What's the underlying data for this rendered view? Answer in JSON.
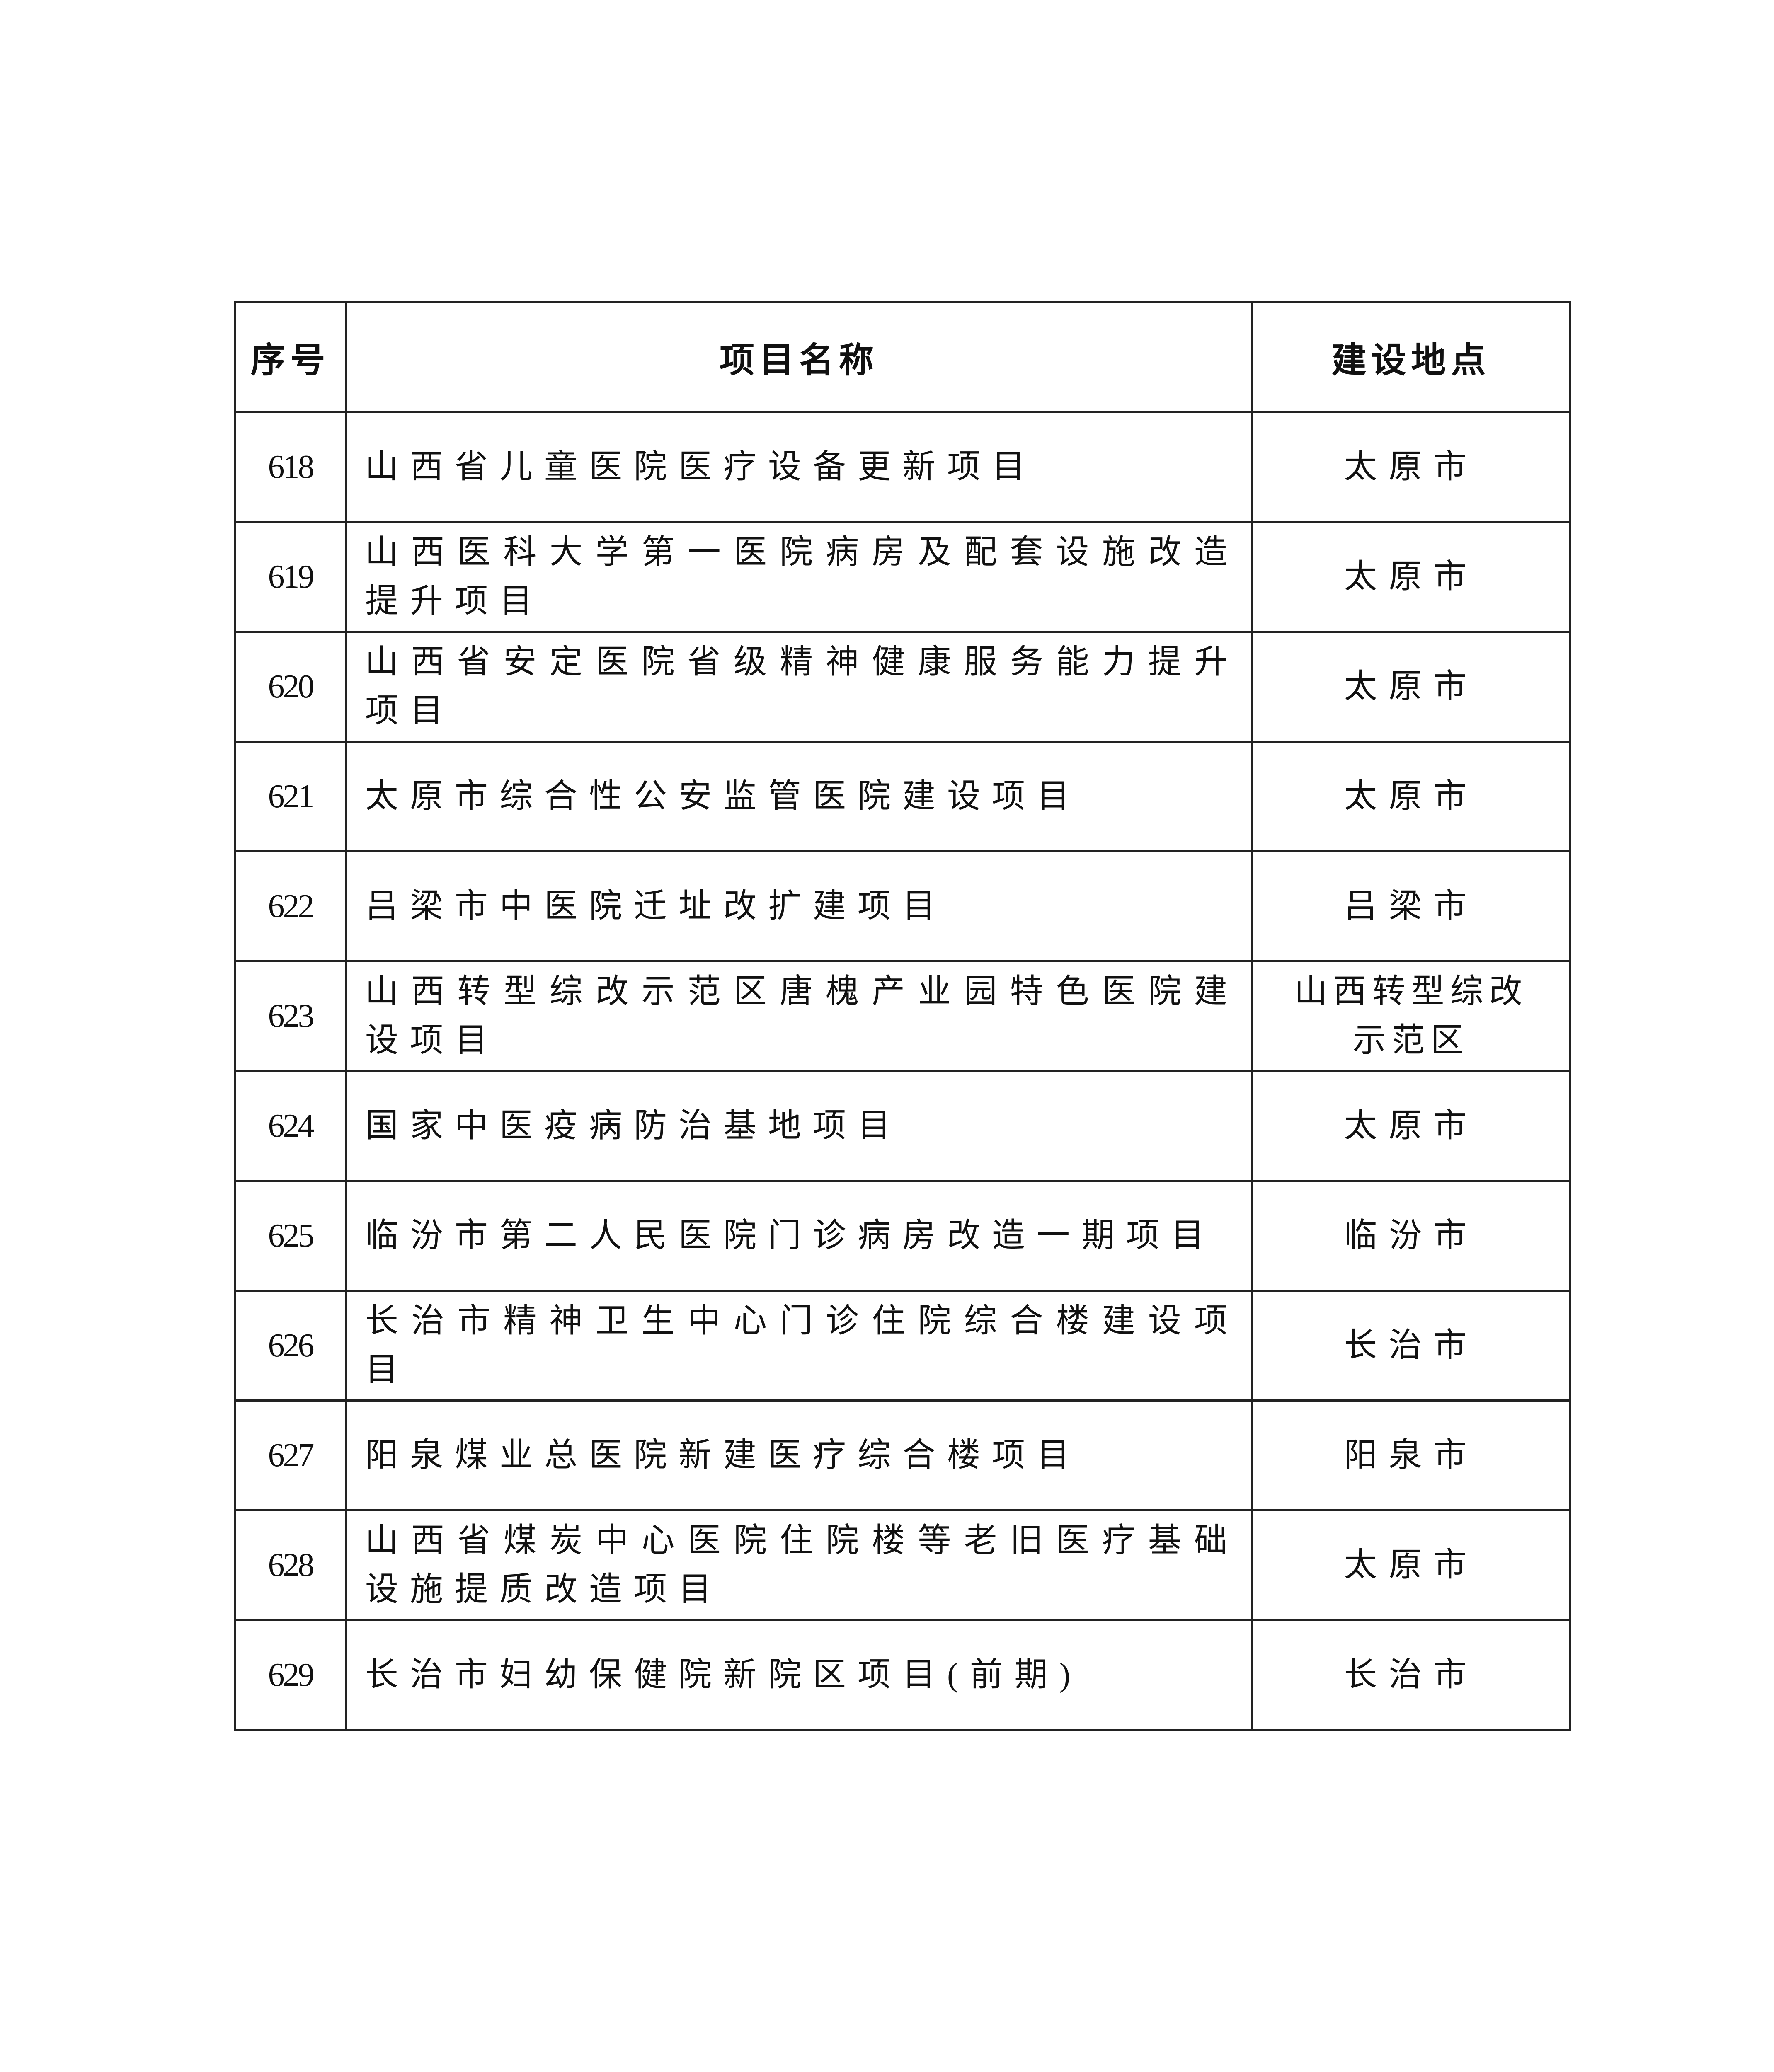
{
  "table": {
    "headers": [
      "序号",
      "项目名称",
      "建设地点"
    ],
    "rows": [
      {
        "no": "618",
        "name": "山西省儿童医院医疗设备更新项目",
        "location": "太原市"
      },
      {
        "no": "619",
        "name": "山西医科大学第一医院病房及配套设施改造提升项目",
        "location": "太原市"
      },
      {
        "no": "620",
        "name": "山西省安定医院省级精神健康服务能力提升项目",
        "location": "太原市"
      },
      {
        "no": "621",
        "name": "太原市综合性公安监管医院建设项目",
        "location": "太原市"
      },
      {
        "no": "622",
        "name": "吕梁市中医院迁址改扩建项目",
        "location": "吕梁市"
      },
      {
        "no": "623",
        "name": "山西转型综改示范区唐槐产业园特色医院建设项目",
        "location": "山西转型综改示范区"
      },
      {
        "no": "624",
        "name": "国家中医疫病防治基地项目",
        "location": "太原市"
      },
      {
        "no": "625",
        "name": "临汾市第二人民医院门诊病房改造一期项目",
        "location": "临汾市"
      },
      {
        "no": "626",
        "name": "长治市精神卫生中心门诊住院综合楼建设项目",
        "location": "长治市"
      },
      {
        "no": "627",
        "name": "阳泉煤业总医院新建医疗综合楼项目",
        "location": "阳泉市"
      },
      {
        "no": "628",
        "name": "山西省煤炭中心医院住院楼等老旧医疗基础设施提质改造项目",
        "location": "太原市"
      },
      {
        "no": "629",
        "name": "长治市妇幼保健院新院区项目(前期)",
        "location": "长治市"
      }
    ]
  }
}
